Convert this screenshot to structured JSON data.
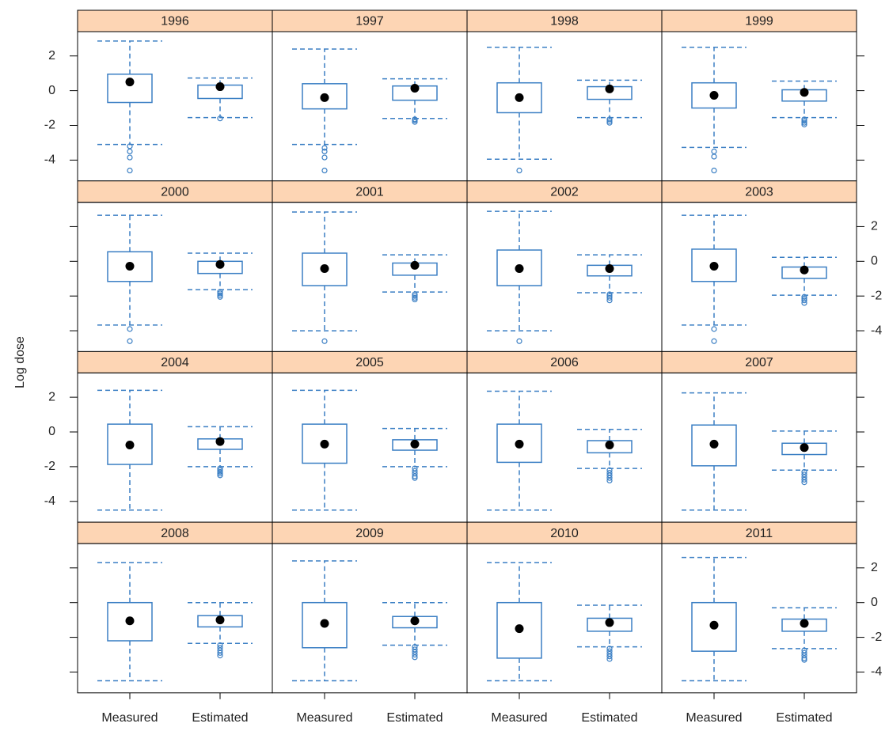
{
  "chart_data": {
    "type": "box",
    "y_label": "Log dose",
    "categories": [
      "Measured",
      "Estimated"
    ],
    "ylim": [
      -5.2,
      3.4
    ],
    "yticks": [
      2,
      0,
      -2,
      -4
    ],
    "color": "#3b7fc4",
    "median_color": "#000000",
    "strip_color": "#fdd5b4",
    "panels": [
      {
        "title": "1996",
        "boxes": [
          {
            "whisker_low": -3.1,
            "q1": -0.68,
            "median": 0.5,
            "q3": 0.95,
            "whisker_high": 2.86,
            "outliers": [
              -3.2,
              -3.5,
              -3.85,
              -4.6
            ]
          },
          {
            "whisker_low": -1.55,
            "q1": -0.45,
            "median": 0.23,
            "q3": 0.32,
            "whisker_high": 0.73,
            "outliers": [
              -1.6
            ]
          }
        ]
      },
      {
        "title": "1997",
        "boxes": [
          {
            "whisker_low": -3.1,
            "q1": -1.05,
            "median": -0.4,
            "q3": 0.4,
            "whisker_high": 2.4,
            "outliers": [
              -3.3,
              -3.5,
              -3.85,
              -4.6
            ]
          },
          {
            "whisker_low": -1.6,
            "q1": -0.55,
            "median": 0.14,
            "q3": 0.27,
            "whisker_high": 0.68,
            "outliers": [
              -1.65,
              -1.7,
              -1.8
            ]
          }
        ]
      },
      {
        "title": "1998",
        "boxes": [
          {
            "whisker_low": -3.95,
            "q1": -1.27,
            "median": -0.4,
            "q3": 0.45,
            "whisker_high": 2.5,
            "outliers": [
              -4.6
            ]
          },
          {
            "whisker_low": -1.55,
            "q1": -0.5,
            "median": 0.1,
            "q3": 0.23,
            "whisker_high": 0.6,
            "outliers": [
              -1.65,
              -1.75,
              -1.85
            ]
          }
        ]
      },
      {
        "title": "1999",
        "boxes": [
          {
            "whisker_low": -3.27,
            "q1": -1.0,
            "median": -0.27,
            "q3": 0.45,
            "whisker_high": 2.5,
            "outliers": [
              -3.5,
              -3.8,
              -4.6
            ]
          },
          {
            "whisker_low": -1.55,
            "q1": -0.6,
            "median": -0.1,
            "q3": 0.05,
            "whisker_high": 0.55,
            "outliers": [
              -1.65,
              -1.75,
              -1.85,
              -1.95
            ]
          }
        ]
      },
      {
        "title": "2000",
        "boxes": [
          {
            "whisker_low": -3.67,
            "q1": -1.16,
            "median": -0.28,
            "q3": 0.55,
            "whisker_high": 2.65,
            "outliers": [
              -3.9,
              -4.6
            ]
          },
          {
            "whisker_low": -1.63,
            "q1": -0.7,
            "median": -0.18,
            "q3": 0.0,
            "whisker_high": 0.47,
            "outliers": [
              -1.75,
              -1.85,
              -1.95,
              -2.05
            ]
          }
        ]
      },
      {
        "title": "2001",
        "boxes": [
          {
            "whisker_low": -4.0,
            "q1": -1.4,
            "median": -0.42,
            "q3": 0.47,
            "whisker_high": 2.84,
            "outliers": [
              -4.6
            ]
          },
          {
            "whisker_low": -1.77,
            "q1": -0.8,
            "median": -0.23,
            "q3": -0.1,
            "whisker_high": 0.37,
            "outliers": [
              -1.9,
              -2.0,
              -2.1,
              -2.2
            ]
          }
        ]
      },
      {
        "title": "2002",
        "boxes": [
          {
            "whisker_low": -4.0,
            "q1": -1.4,
            "median": -0.42,
            "q3": 0.65,
            "whisker_high": 2.88,
            "outliers": [
              -4.6
            ]
          },
          {
            "whisker_low": -1.81,
            "q1": -0.84,
            "median": -0.42,
            "q3": -0.23,
            "whisker_high": 0.37,
            "outliers": [
              -1.9,
              -2.0,
              -2.1,
              -2.25
            ]
          }
        ]
      },
      {
        "title": "2003",
        "boxes": [
          {
            "whisker_low": -3.67,
            "q1": -1.16,
            "median": -0.28,
            "q3": 0.7,
            "whisker_high": 2.65,
            "outliers": [
              -3.9,
              -4.6
            ]
          },
          {
            "whisker_low": -1.95,
            "q1": -0.98,
            "median": -0.5,
            "q3": -0.33,
            "whisker_high": 0.23,
            "outliers": [
              -2.05,
              -2.15,
              -2.25,
              -2.4
            ]
          }
        ]
      },
      {
        "title": "2004",
        "boxes": [
          {
            "whisker_low": -4.5,
            "q1": -1.87,
            "median": -0.75,
            "q3": 0.45,
            "whisker_high": 2.4,
            "outliers": []
          },
          {
            "whisker_low": -2.0,
            "q1": -1.0,
            "median": -0.55,
            "q3": -0.4,
            "whisker_high": 0.3,
            "outliers": [
              -2.1,
              -2.2,
              -2.3,
              -2.4,
              -2.5
            ]
          }
        ]
      },
      {
        "title": "2005",
        "boxes": [
          {
            "whisker_low": -4.5,
            "q1": -1.8,
            "median": -0.7,
            "q3": 0.45,
            "whisker_high": 2.4,
            "outliers": []
          },
          {
            "whisker_low": -2.0,
            "q1": -1.05,
            "median": -0.7,
            "q3": -0.45,
            "whisker_high": 0.2,
            "outliers": [
              -2.1,
              -2.25,
              -2.4,
              -2.55,
              -2.65
            ]
          }
        ]
      },
      {
        "title": "2006",
        "boxes": [
          {
            "whisker_low": -4.5,
            "q1": -1.75,
            "median": -0.7,
            "q3": 0.45,
            "whisker_high": 2.35,
            "outliers": []
          },
          {
            "whisker_low": -2.1,
            "q1": -1.2,
            "median": -0.75,
            "q3": -0.5,
            "whisker_high": 0.15,
            "outliers": [
              -2.2,
              -2.35,
              -2.5,
              -2.65,
              -2.8
            ]
          }
        ]
      },
      {
        "title": "2007",
        "boxes": [
          {
            "whisker_low": -4.5,
            "q1": -1.95,
            "median": -0.7,
            "q3": 0.4,
            "whisker_high": 2.25,
            "outliers": []
          },
          {
            "whisker_low": -2.2,
            "q1": -1.3,
            "median": -0.9,
            "q3": -0.65,
            "whisker_high": 0.05,
            "outliers": [
              -2.3,
              -2.45,
              -2.6,
              -2.75,
              -2.9
            ]
          }
        ]
      },
      {
        "title": "2008",
        "boxes": [
          {
            "whisker_low": -4.5,
            "q1": -2.2,
            "median": -1.05,
            "q3": 0.0,
            "whisker_high": 2.3,
            "outliers": []
          },
          {
            "whisker_low": -2.35,
            "q1": -1.4,
            "median": -1.0,
            "q3": -0.75,
            "whisker_high": 0.0,
            "outliers": [
              -2.45,
              -2.6,
              -2.75,
              -2.9,
              -3.05
            ]
          }
        ]
      },
      {
        "title": "2009",
        "boxes": [
          {
            "whisker_low": -4.5,
            "q1": -2.6,
            "median": -1.2,
            "q3": 0.0,
            "whisker_high": 2.4,
            "outliers": []
          },
          {
            "whisker_low": -2.45,
            "q1": -1.45,
            "median": -1.05,
            "q3": -0.8,
            "whisker_high": 0.0,
            "outliers": [
              -2.55,
              -2.7,
              -2.85,
              -3.0,
              -3.15
            ]
          }
        ]
      },
      {
        "title": "2010",
        "boxes": [
          {
            "whisker_low": -4.5,
            "q1": -3.2,
            "median": -1.5,
            "q3": 0.0,
            "whisker_high": 2.3,
            "outliers": []
          },
          {
            "whisker_low": -2.55,
            "q1": -1.65,
            "median": -1.15,
            "q3": -0.9,
            "whisker_high": -0.15,
            "outliers": [
              -2.65,
              -2.8,
              -2.95,
              -3.1,
              -3.25
            ]
          }
        ]
      },
      {
        "title": "2011",
        "boxes": [
          {
            "whisker_low": -4.5,
            "q1": -2.8,
            "median": -1.3,
            "q3": 0.0,
            "whisker_high": 2.6,
            "outliers": []
          },
          {
            "whisker_low": -2.65,
            "q1": -1.65,
            "median": -1.2,
            "q3": -0.95,
            "whisker_high": -0.3,
            "outliers": [
              -2.75,
              -2.9,
              -3.05,
              -3.2,
              -3.3
            ]
          }
        ]
      }
    ]
  }
}
